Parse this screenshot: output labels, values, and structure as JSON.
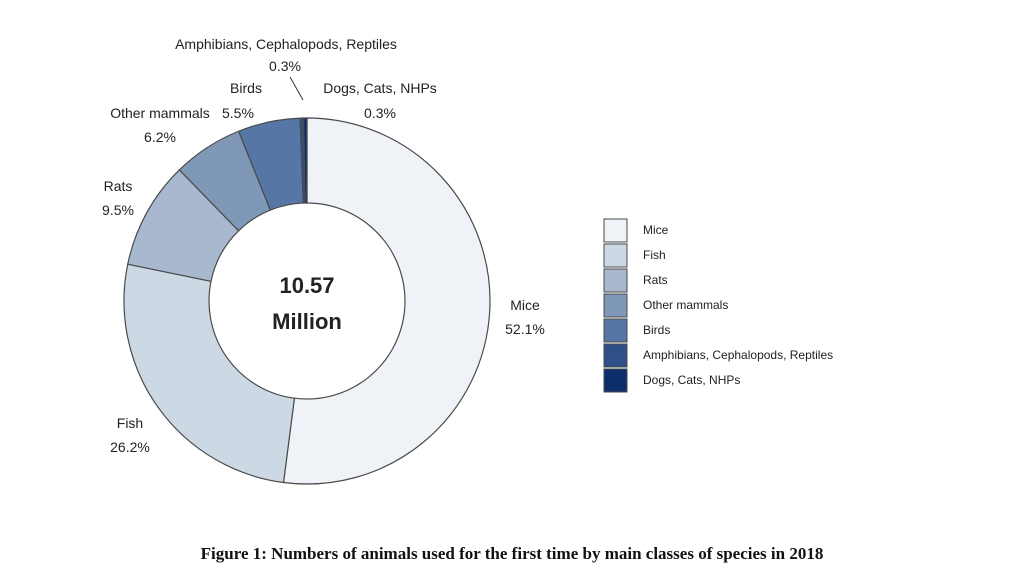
{
  "caption": "Figure 1: Numbers of animals used for the first time by main classes of species in 2018",
  "chart_data": {
    "type": "pie",
    "variant": "donut",
    "center_label": [
      "10.57",
      "Million"
    ],
    "slices": [
      {
        "label": "Mice",
        "value": 52.1,
        "value_label": "52.1%",
        "color": "#eff3f8"
      },
      {
        "label": "Fish",
        "value": 26.2,
        "value_label": "26.2%",
        "color": "#cdd8e5"
      },
      {
        "label": "Rats",
        "value": 9.5,
        "value_label": "9.5%",
        "color": "#a7b8cf"
      },
      {
        "label": "Other mammals",
        "value": 6.2,
        "value_label": "6.2%",
        "color": "#8098b8"
      },
      {
        "label": "Birds",
        "value": 5.5,
        "value_label": "5.5%",
        "color": "#5677a5"
      },
      {
        "label": "Amphibians, Cephalopods, Reptiles",
        "value": 0.3,
        "value_label": "0.3%",
        "color": "#2f4f88"
      },
      {
        "label": "Dogs, Cats, NHPs",
        "value": 0.3,
        "value_label": "0.3%",
        "color": "#0c2e6a"
      }
    ],
    "legend_position": "right"
  }
}
